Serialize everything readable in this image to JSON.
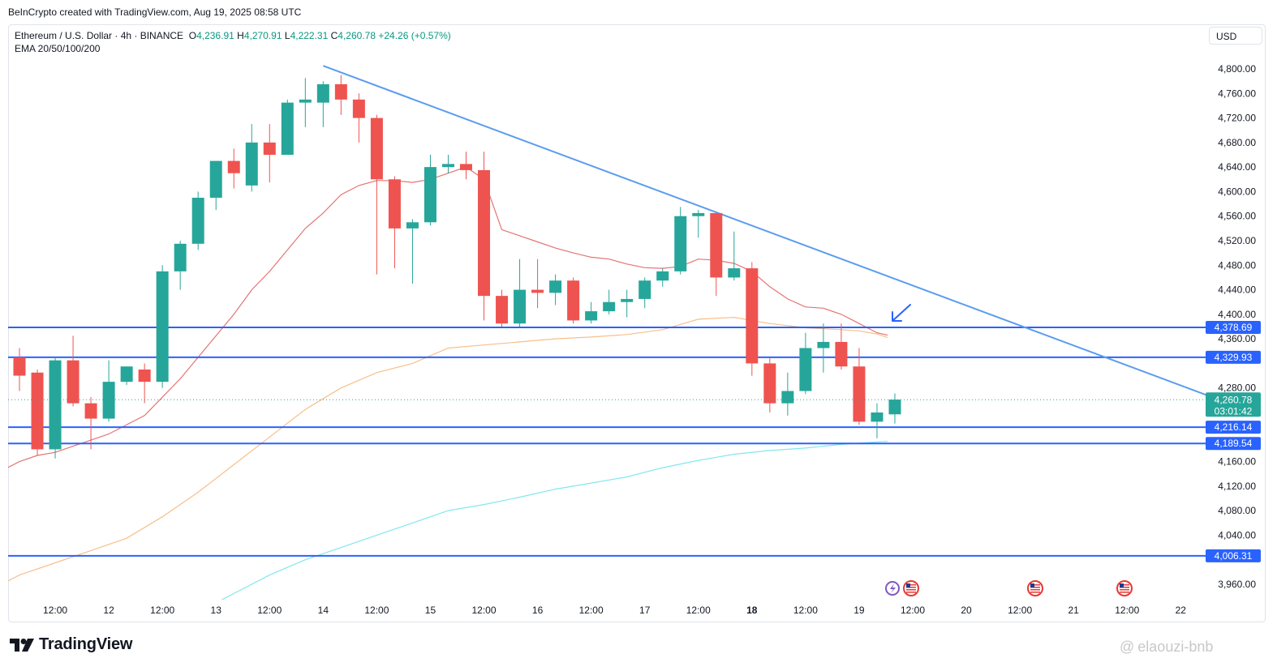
{
  "credit": "BeInCrypto created with TradingView.com, Aug 19, 2025 08:58 UTC",
  "legend": {
    "symbol": "Ethereum / U.S. Dollar · 4h · BINANCE",
    "o_label": "O",
    "o": "4,236.91",
    "h_label": "H",
    "h": "4,270.91",
    "l_label": "L",
    "l": "4,222.31",
    "c_label": "C",
    "c": "4,260.78",
    "change": "+24.26 (+0.57%)",
    "indicator": "EMA 20/50/100/200"
  },
  "currency": "USD",
  "brand": "TradingView",
  "watermark": "elaouzi-bnb",
  "colors": {
    "up": "#26a69a",
    "down": "#ef5350",
    "level": "#2962ff",
    "trendline": "#5b9cf0",
    "ema20": "#e57373",
    "ema50": "#f8bf8a",
    "ema100": "#80e8f0"
  },
  "chart_data": {
    "type": "candlestick",
    "y_range": [
      3930,
      4830
    ],
    "y_ticks": [
      3960,
      4040,
      4080,
      4120,
      4160,
      4280,
      4360,
      4400,
      4440,
      4480,
      4520,
      4560,
      4600,
      4640,
      4680,
      4720,
      4760,
      4800
    ],
    "y_tick_labels": [
      "3,960.00",
      "4,040.00",
      "4,080.00",
      "4,120.00",
      "4,160.00",
      "4,280.00",
      "4,360.00",
      "4,400.00",
      "4,440.00",
      "4,480.00",
      "4,520.00",
      "4,560.00",
      "4,600.00",
      "4,640.00",
      "4,680.00",
      "4,720.00",
      "4,760.00",
      "4,800.00"
    ],
    "x_ticks": [
      {
        "label": "12:00",
        "index": 2.0
      },
      {
        "label": "12",
        "index": 5.0
      },
      {
        "label": "12:00",
        "index": 8.0
      },
      {
        "label": "13",
        "index": 11.0
      },
      {
        "label": "12:00",
        "index": 14.0
      },
      {
        "label": "14",
        "index": 17.0
      },
      {
        "label": "12:00",
        "index": 20.0
      },
      {
        "label": "15",
        "index": 23.0
      },
      {
        "label": "12:00",
        "index": 26.0
      },
      {
        "label": "16",
        "index": 29.0
      },
      {
        "label": "12:00",
        "index": 32.0
      },
      {
        "label": "17",
        "index": 35.0
      },
      {
        "label": "12:00",
        "index": 38.0
      },
      {
        "label": "18",
        "index": 41.0,
        "bold": true
      },
      {
        "label": "12:00",
        "index": 44.0
      },
      {
        "label": "19",
        "index": 47.0
      },
      {
        "label": "12:00",
        "index": 50.0
      },
      {
        "label": "20",
        "index": 53.0
      },
      {
        "label": "12:00",
        "index": 56.0
      },
      {
        "label": "21",
        "index": 59.0
      },
      {
        "label": "12:00",
        "index": 62.0
      },
      {
        "label": "22",
        "index": 65.0
      }
    ],
    "candles": [
      {
        "o": 4330,
        "h": 4345,
        "l": 4275,
        "c": 4300
      },
      {
        "o": 4305,
        "h": 4310,
        "l": 4170,
        "c": 4180
      },
      {
        "o": 4180,
        "h": 4330,
        "l": 4165,
        "c": 4325
      },
      {
        "o": 4325,
        "h": 4365,
        "l": 4250,
        "c": 4255
      },
      {
        "o": 4255,
        "h": 4265,
        "l": 4180,
        "c": 4230
      },
      {
        "o": 4230,
        "h": 4325,
        "l": 4225,
        "c": 4290
      },
      {
        "o": 4290,
        "h": 4315,
        "l": 4285,
        "c": 4315
      },
      {
        "o": 4310,
        "h": 4320,
        "l": 4255,
        "c": 4290
      },
      {
        "o": 4290,
        "h": 4480,
        "l": 4280,
        "c": 4470
      },
      {
        "o": 4470,
        "h": 4520,
        "l": 4440,
        "c": 4515
      },
      {
        "o": 4515,
        "h": 4600,
        "l": 4505,
        "c": 4590
      },
      {
        "o": 4590,
        "h": 4650,
        "l": 4570,
        "c": 4650
      },
      {
        "o": 4650,
        "h": 4670,
        "l": 4605,
        "c": 4630
      },
      {
        "o": 4610,
        "h": 4710,
        "l": 4600,
        "c": 4680
      },
      {
        "o": 4680,
        "h": 4710,
        "l": 4615,
        "c": 4660
      },
      {
        "o": 4660,
        "h": 4750,
        "l": 4660,
        "c": 4745
      },
      {
        "o": 4745,
        "h": 4785,
        "l": 4705,
        "c": 4750
      },
      {
        "o": 4745,
        "h": 4780,
        "l": 4705,
        "c": 4775
      },
      {
        "o": 4775,
        "h": 4790,
        "l": 4725,
        "c": 4750
      },
      {
        "o": 4750,
        "h": 4760,
        "l": 4680,
        "c": 4720
      },
      {
        "o": 4720,
        "h": 4725,
        "l": 4465,
        "c": 4620
      },
      {
        "o": 4620,
        "h": 4625,
        "l": 4475,
        "c": 4540
      },
      {
        "o": 4540,
        "h": 4555,
        "l": 4450,
        "c": 4550
      },
      {
        "o": 4550,
        "h": 4660,
        "l": 4545,
        "c": 4640
      },
      {
        "o": 4640,
        "h": 4660,
        "l": 4630,
        "c": 4645
      },
      {
        "o": 4645,
        "h": 4665,
        "l": 4620,
        "c": 4635
      },
      {
        "o": 4635,
        "h": 4665,
        "l": 4390,
        "c": 4430
      },
      {
        "o": 4430,
        "h": 4440,
        "l": 4380,
        "c": 4385
      },
      {
        "o": 4385,
        "h": 4490,
        "l": 4380,
        "c": 4440
      },
      {
        "o": 4440,
        "h": 4490,
        "l": 4410,
        "c": 4435
      },
      {
        "o": 4435,
        "h": 4465,
        "l": 4415,
        "c": 4455
      },
      {
        "o": 4455,
        "h": 4460,
        "l": 4385,
        "c": 4390
      },
      {
        "o": 4390,
        "h": 4420,
        "l": 4385,
        "c": 4405
      },
      {
        "o": 4405,
        "h": 4440,
        "l": 4400,
        "c": 4420
      },
      {
        "o": 4420,
        "h": 4440,
        "l": 4395,
        "c": 4425
      },
      {
        "o": 4425,
        "h": 4460,
        "l": 4410,
        "c": 4455
      },
      {
        "o": 4455,
        "h": 4475,
        "l": 4445,
        "c": 4470
      },
      {
        "o": 4470,
        "h": 4575,
        "l": 4465,
        "c": 4560
      },
      {
        "o": 4560,
        "h": 4570,
        "l": 4525,
        "c": 4565
      },
      {
        "o": 4565,
        "h": 4565,
        "l": 4430,
        "c": 4460
      },
      {
        "o": 4460,
        "h": 4535,
        "l": 4455,
        "c": 4475
      },
      {
        "o": 4475,
        "h": 4485,
        "l": 4300,
        "c": 4320
      },
      {
        "o": 4320,
        "h": 4330,
        "l": 4240,
        "c": 4255
      },
      {
        "o": 4255,
        "h": 4305,
        "l": 4235,
        "c": 4275
      },
      {
        "o": 4275,
        "h": 4370,
        "l": 4270,
        "c": 4345
      },
      {
        "o": 4345,
        "h": 4385,
        "l": 4305,
        "c": 4355
      },
      {
        "o": 4355,
        "h": 4385,
        "l": 4310,
        "c": 4315
      },
      {
        "o": 4315,
        "h": 4345,
        "l": 4220,
        "c": 4225
      },
      {
        "o": 4225,
        "h": 4255,
        "l": 4198,
        "c": 4240
      },
      {
        "o": 4237,
        "h": 4271,
        "l": 4222,
        "c": 4261
      }
    ],
    "ema": [
      {
        "name": "EMA 20",
        "color": "#e57373",
        "points": [
          [
            -2.5,
            4130
          ],
          [
            -2,
            4140
          ],
          [
            -1,
            4145
          ],
          [
            0,
            4160
          ],
          [
            1,
            4170
          ],
          [
            2,
            4175
          ],
          [
            3,
            4185
          ],
          [
            4,
            4195
          ],
          [
            5,
            4205
          ],
          [
            6,
            4220
          ],
          [
            7,
            4235
          ],
          [
            8,
            4265
          ],
          [
            9,
            4295
          ],
          [
            10,
            4330
          ],
          [
            11,
            4365
          ],
          [
            12,
            4400
          ],
          [
            13,
            4440
          ],
          [
            14,
            4470
          ],
          [
            15,
            4505
          ],
          [
            16,
            4540
          ],
          [
            17,
            4565
          ],
          [
            18,
            4595
          ],
          [
            19,
            4610
          ],
          [
            20,
            4618
          ],
          [
            21,
            4618
          ],
          [
            22,
            4615
          ],
          [
            23,
            4620
          ],
          [
            24,
            4630
          ],
          [
            25,
            4640
          ],
          [
            26,
            4620
          ],
          [
            27,
            4538
          ],
          [
            28,
            4528
          ],
          [
            29,
            4518
          ],
          [
            30,
            4508
          ],
          [
            31,
            4500
          ],
          [
            32,
            4493
          ],
          [
            33,
            4490
          ],
          [
            34,
            4482
          ],
          [
            35,
            4476
          ],
          [
            36,
            4475
          ],
          [
            37,
            4478
          ],
          [
            38,
            4490
          ],
          [
            39,
            4488
          ],
          [
            40,
            4483
          ],
          [
            41,
            4470
          ],
          [
            42,
            4445
          ],
          [
            43,
            4425
          ],
          [
            44,
            4412
          ],
          [
            45,
            4410
          ],
          [
            46,
            4400
          ],
          [
            47,
            4385
          ],
          [
            48,
            4370
          ],
          [
            48.6,
            4366
          ]
        ]
      },
      {
        "name": "EMA 50",
        "color": "#f8bf8a",
        "points": [
          [
            -2.5,
            3945
          ],
          [
            -1,
            3960
          ],
          [
            0,
            3975
          ],
          [
            2,
            3995
          ],
          [
            4,
            4015
          ],
          [
            6,
            4035
          ],
          [
            8,
            4070
          ],
          [
            10,
            4110
          ],
          [
            12,
            4155
          ],
          [
            14,
            4200
          ],
          [
            16,
            4245
          ],
          [
            18,
            4280
          ],
          [
            20,
            4305
          ],
          [
            22,
            4320
          ],
          [
            24,
            4345
          ],
          [
            26,
            4350
          ],
          [
            28,
            4355
          ],
          [
            30,
            4360
          ],
          [
            32,
            4363
          ],
          [
            34,
            4367
          ],
          [
            36,
            4375
          ],
          [
            38,
            4392
          ],
          [
            40,
            4395
          ],
          [
            42,
            4385
          ],
          [
            44,
            4378
          ],
          [
            46,
            4375
          ],
          [
            47,
            4373
          ],
          [
            48,
            4368
          ],
          [
            48.6,
            4362
          ]
        ]
      },
      {
        "name": "EMA 100",
        "color": "#80e8f0",
        "points": [
          [
            11,
            3930
          ],
          [
            12,
            3945
          ],
          [
            14,
            3975
          ],
          [
            16,
            4000
          ],
          [
            18,
            4020
          ],
          [
            20,
            4040
          ],
          [
            22,
            4060
          ],
          [
            24,
            4080
          ],
          [
            26,
            4090
          ],
          [
            28,
            4102
          ],
          [
            30,
            4115
          ],
          [
            32,
            4125
          ],
          [
            34,
            4135
          ],
          [
            36,
            4150
          ],
          [
            38,
            4162
          ],
          [
            40,
            4172
          ],
          [
            42,
            4178
          ],
          [
            44,
            4182
          ],
          [
            46,
            4188
          ],
          [
            48,
            4192
          ],
          [
            48.6,
            4193
          ]
        ]
      }
    ],
    "levels": [
      {
        "value": 4378.69,
        "label": "4,378.69"
      },
      {
        "value": 4329.93,
        "label": "4,329.93"
      },
      {
        "value": 4216.14,
        "label": "4,216.14"
      },
      {
        "value": 4189.54,
        "label": "4,189.54"
      },
      {
        "value": 4006.31,
        "label": "4,006.31"
      }
    ],
    "trendline": {
      "start": [
        17.0,
        4805
      ],
      "end": [
        67.5,
        4257
      ]
    },
    "current": {
      "value": 4260.78,
      "label": "4,260.78",
      "countdown": "03:01:42"
    }
  }
}
